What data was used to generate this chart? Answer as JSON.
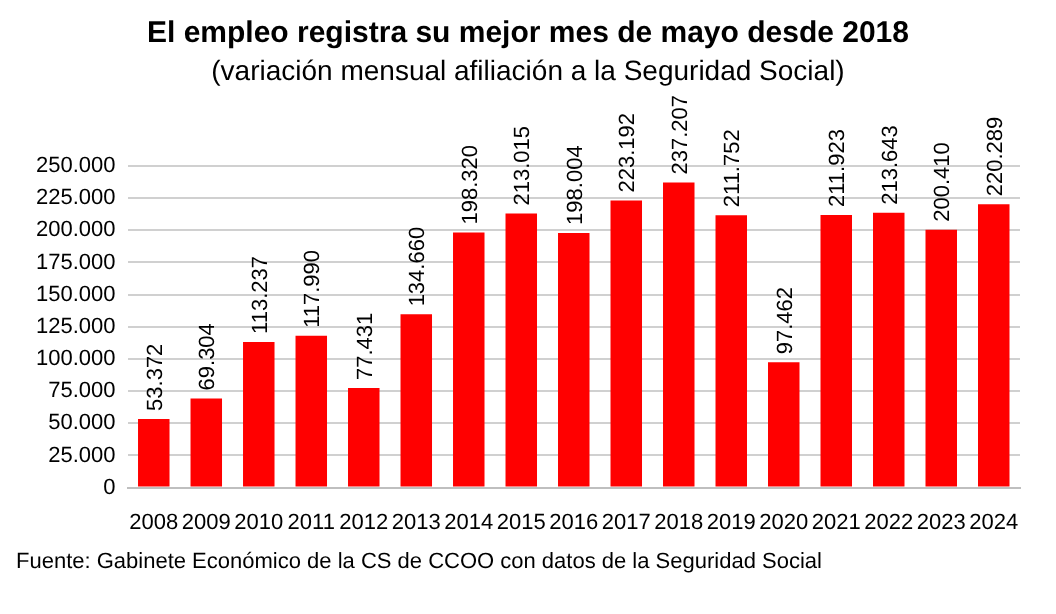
{
  "chart_data": {
    "type": "bar",
    "title": "El empleo registra su mejor mes de mayo desde 2018",
    "subtitle": "(variación mensual afiliación a la Seguridad Social)",
    "categories": [
      "2008",
      "2009",
      "2010",
      "2011",
      "2012",
      "2013",
      "2014",
      "2015",
      "2016",
      "2017",
      "2018",
      "2019",
      "2020",
      "2021",
      "2022",
      "2023",
      "2024"
    ],
    "values": [
      53372,
      69304,
      113237,
      117990,
      77431,
      134660,
      198320,
      213015,
      198004,
      223192,
      237207,
      211752,
      97462,
      211923,
      213643,
      200410,
      220289
    ],
    "value_labels": [
      "53.372",
      "69.304",
      "113.237",
      "117.990",
      "77.431",
      "134.660",
      "198.320",
      "213.015",
      "198.004",
      "223.192",
      "237.207",
      "211.752",
      "97.462",
      "211.923",
      "213.643",
      "200.410",
      "220.289"
    ],
    "color": "#ff0000",
    "ylim": [
      0,
      250000
    ],
    "yticks": [
      {
        "value": 0,
        "label": "0"
      },
      {
        "value": 25000,
        "label": "25.000"
      },
      {
        "value": 50000,
        "label": "50.000"
      },
      {
        "value": 75000,
        "label": "75.000"
      },
      {
        "value": 100000,
        "label": "100.000"
      },
      {
        "value": 125000,
        "label": "125.000"
      },
      {
        "value": 150000,
        "label": "150.000"
      },
      {
        "value": 175000,
        "label": "175.000"
      },
      {
        "value": 200000,
        "label": "200.000"
      },
      {
        "value": 225000,
        "label": "225.000"
      },
      {
        "value": 250000,
        "label": "250.000"
      }
    ],
    "grid": "y",
    "legend": false,
    "annotations": [
      "Fuente: Gabinete Económico de la CS de CCOO con datos de la Seguridad Social"
    ]
  }
}
